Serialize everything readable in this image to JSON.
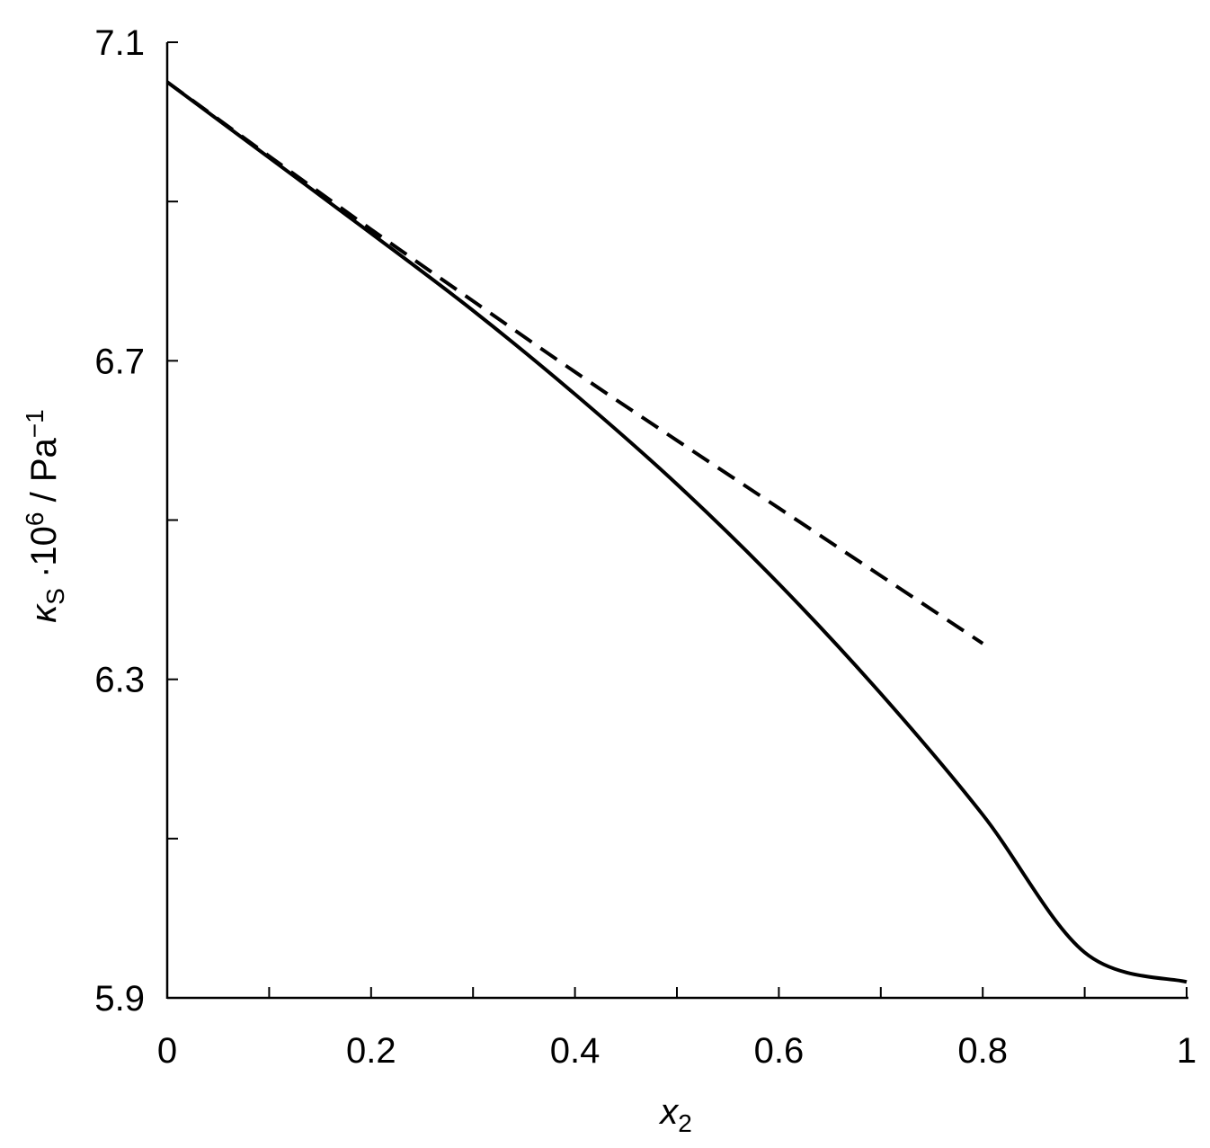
{
  "chart_data": {
    "type": "line",
    "title": "",
    "xlabel": {
      "symbol": "x",
      "subscript": "2"
    },
    "ylabel": {
      "symbol": "κ",
      "subscript": "S",
      "middle": " ·10",
      "exp": "6",
      "unit": " / Pa",
      "unit_exp": "−1"
    },
    "xlim": [
      0,
      1
    ],
    "ylim": [
      5.9,
      7.1
    ],
    "xticks": [
      0,
      0.2,
      0.4,
      0.6,
      0.8,
      1
    ],
    "xtick_labels": [
      "0",
      "0.2",
      "0.4",
      "0.6",
      "0.8",
      "1"
    ],
    "xticks_minor": [
      0.1,
      0.3,
      0.5,
      0.7,
      0.9
    ],
    "yticks": [
      5.9,
      6.3,
      6.7,
      7.1
    ],
    "ytick_labels": [
      "5.9",
      "6.3",
      "6.7",
      "7.1"
    ],
    "yticks_minor": [
      6.1,
      6.5,
      6.9
    ],
    "grid": false,
    "legend": "none",
    "series": [
      {
        "style": "solid",
        "color": "#000000",
        "x": [
          0,
          0.1,
          0.2,
          0.3,
          0.4,
          0.5,
          0.6,
          0.7,
          0.8,
          0.9,
          1.0
        ],
        "y": [
          7.05,
          6.955,
          6.86,
          6.763,
          6.658,
          6.545,
          6.42,
          6.282,
          6.13,
          5.957,
          5.92
        ]
      },
      {
        "style": "dashed",
        "color": "#000000",
        "x": [
          0,
          0.1,
          0.2,
          0.3,
          0.4,
          0.5,
          0.6,
          0.7,
          0.8
        ],
        "y": [
          7.05,
          6.957,
          6.865,
          6.775,
          6.686,
          6.6,
          6.515,
          6.43,
          6.345
        ]
      }
    ]
  }
}
